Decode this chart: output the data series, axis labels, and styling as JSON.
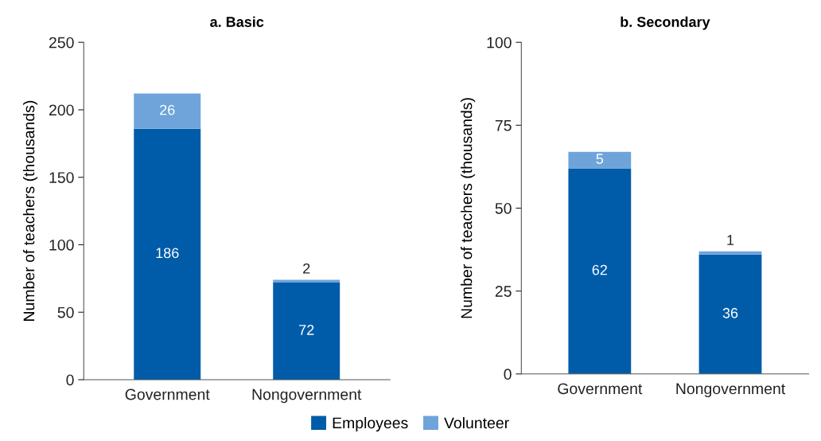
{
  "chart_data": [
    {
      "type": "bar",
      "title": "a. Basic",
      "ylabel": "Number of teachers (thousands)",
      "categories": [
        "Government",
        "Nongovernment"
      ],
      "stacked": true,
      "data_labels": true,
      "legend": "bottom",
      "grid": false,
      "ylim": [
        0,
        250
      ],
      "yticks": [
        0,
        50,
        100,
        150,
        200,
        250
      ],
      "series": [
        {
          "name": "Employees",
          "color": "#005ca9",
          "values": [
            186,
            72
          ]
        },
        {
          "name": "Volunteer",
          "color": "#6ea4da",
          "values": [
            26,
            2
          ]
        }
      ]
    },
    {
      "type": "bar",
      "title": "b. Secondary",
      "ylabel": "Number of teachers (thousands)",
      "categories": [
        "Government",
        "Nongovernment"
      ],
      "stacked": true,
      "data_labels": true,
      "grid": false,
      "ylim": [
        0,
        100
      ],
      "yticks": [
        0,
        25,
        50,
        75,
        100
      ],
      "series": [
        {
          "name": "Employees",
          "color": "#005ca9",
          "values": [
            62,
            36
          ]
        },
        {
          "name": "Volunteer",
          "color": "#6ea4da",
          "values": [
            5,
            1
          ]
        }
      ]
    }
  ]
}
